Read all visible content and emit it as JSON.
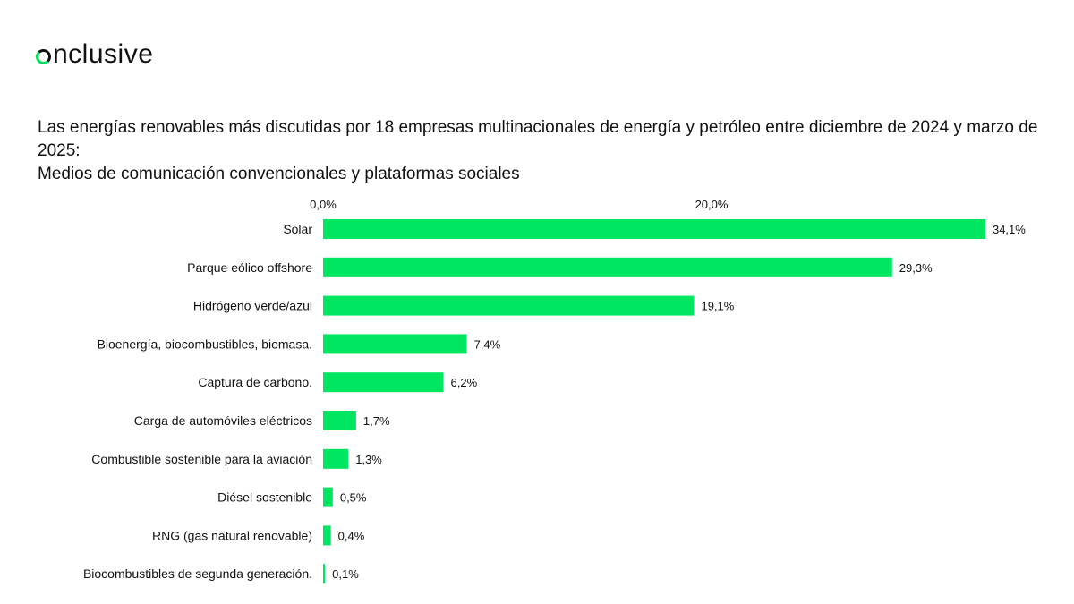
{
  "brand": {
    "name": "nclusive",
    "accent": "#00e05a"
  },
  "title": {
    "line1": "Las energías renovables más discutidas por 18 empresas multinacionales de energía y petróleo entre diciembre de 2024 y marzo de 2025:",
    "line2": "Medios de comunicación convencionales y plataformas sociales"
  },
  "chart_data": {
    "type": "bar",
    "orientation": "horizontal",
    "bar_color": "#00e660",
    "categories": [
      "Solar",
      "Parque eólico offshore",
      "Hidrógeno verde/azul",
      "Bioenergía, biocombustibles, biomasa.",
      "Captura de carbono.",
      "Carga de automóviles eléctricos",
      "Combustible sostenible para la aviación",
      "Diésel sostenible",
      "RNG (gas natural renovable)",
      "Biocombustibles de segunda generación."
    ],
    "values": [
      34.1,
      29.3,
      19.1,
      7.4,
      6.2,
      1.7,
      1.3,
      0.5,
      0.4,
      0.1
    ],
    "value_labels": [
      "34,1%",
      "29,3%",
      "19,1%",
      "7,4%",
      "6,2%",
      "1,7%",
      "1,3%",
      "0,5%",
      "0,4%",
      "0,1%"
    ],
    "x_ticks": [
      0,
      20
    ],
    "x_tick_labels": [
      "0,0%",
      "20,0%"
    ],
    "axis_position": "top",
    "grid": false,
    "xlim": [
      0,
      34.1
    ]
  }
}
